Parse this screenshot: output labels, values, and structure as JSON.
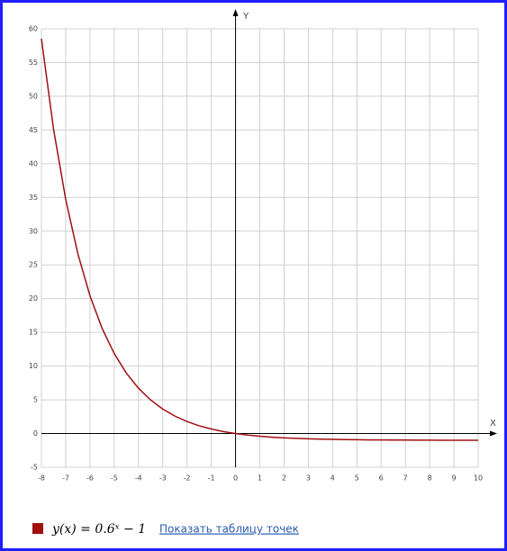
{
  "chart_data": {
    "type": "line",
    "x_axis_label": "X",
    "y_axis_label": "Y",
    "x": [
      -8,
      -7.5,
      -7,
      -6.5,
      -6,
      -5.5,
      -5,
      -4.5,
      -4,
      -3.5,
      -3,
      -2.5,
      -2,
      -1.5,
      -1,
      -0.5,
      0,
      0.5,
      1,
      1.5,
      2,
      2.5,
      3,
      3.5,
      4,
      4.5,
      5,
      5.5,
      6,
      6.5,
      7,
      7.5,
      8,
      8.5,
      9,
      9.5,
      10
    ],
    "series": [
      {
        "name": "y(x) = 0.6ˣ − 1",
        "color": "#a01010",
        "values": [
          58.54,
          45.12,
          34.72,
          26.67,
          20.43,
          15.6,
          11.86,
          8.96,
          6.72,
          4.98,
          3.63,
          2.59,
          1.78,
          1.15,
          0.67,
          0.29,
          0,
          -0.23,
          -0.4,
          -0.54,
          -0.64,
          -0.72,
          -0.78,
          -0.83,
          -0.87,
          -0.9,
          -0.92,
          -0.94,
          -0.95,
          -0.96,
          -0.97,
          -0.98,
          -0.98,
          -0.99,
          -0.99,
          -0.99,
          -0.99
        ]
      }
    ],
    "xlim": [
      -8,
      10
    ],
    "ylim": [
      -5,
      60
    ],
    "xticks": [
      -8,
      -7,
      -6,
      -5,
      -4,
      -3,
      -2,
      -1,
      0,
      1,
      2,
      3,
      4,
      5,
      6,
      7,
      8,
      9,
      10
    ],
    "yticks": [
      -5,
      0,
      5,
      10,
      15,
      20,
      25,
      30,
      35,
      40,
      45,
      50,
      55,
      60
    ],
    "grid": true,
    "table_link": "Показать таблицу точек"
  }
}
